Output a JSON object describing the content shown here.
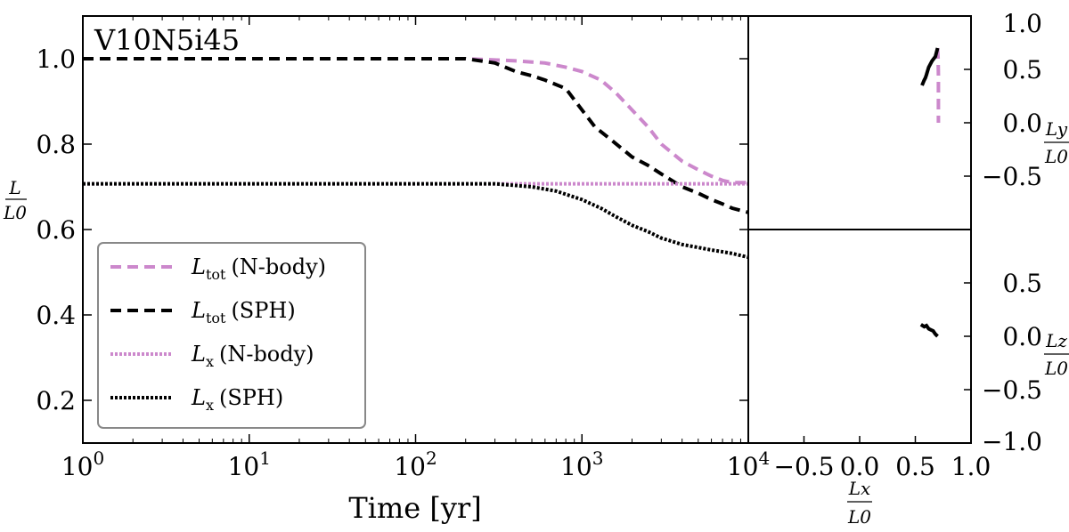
{
  "chart_data": [
    {
      "type": "line",
      "panel": "main",
      "title": "V10N5i45",
      "xscale": "log",
      "xlabel": "Time [yr]",
      "ylabel_num": "L",
      "ylabel_den": "L0",
      "xlim": [
        1,
        10000
      ],
      "ylim": [
        0.1,
        1.1
      ],
      "xticks": [
        1,
        10,
        100,
        1000,
        10000
      ],
      "xtick_labels": [
        {
          "base": "10",
          "exp": "0"
        },
        {
          "base": "10",
          "exp": "1"
        },
        {
          "base": "10",
          "exp": "2"
        },
        {
          "base": "10",
          "exp": "3"
        },
        {
          "base": "10",
          "exp": "4"
        }
      ],
      "yticks": [
        0.2,
        0.4,
        0.6,
        0.8,
        1.0
      ],
      "ytick_labels": [
        "0.2",
        "0.4",
        "0.6",
        "0.8",
        "1.0"
      ],
      "legend_position": "lower-left",
      "series": [
        {
          "name": "L_tot (N-body)",
          "legend_main": "L",
          "legend_sub": "tot",
          "legend_rest": "(N-body)",
          "color": "#cc88cc",
          "dash": "dashed",
          "x": [
            1,
            10,
            100,
            200,
            400,
            600,
            800,
            1000,
            1300,
            1600,
            2000,
            2500,
            3000,
            4000,
            5000,
            6000,
            7000,
            8000,
            10000
          ],
          "y": [
            1.0,
            1.0,
            1.0,
            1.0,
            0.995,
            0.99,
            0.98,
            0.97,
            0.95,
            0.92,
            0.88,
            0.84,
            0.8,
            0.76,
            0.74,
            0.725,
            0.715,
            0.71,
            0.71
          ]
        },
        {
          "name": "L_tot (SPH)",
          "legend_main": "L",
          "legend_sub": "tot",
          "legend_rest": "(SPH)",
          "color": "#000000",
          "dash": "dashed",
          "x": [
            1,
            10,
            100,
            200,
            300,
            400,
            500,
            600,
            800,
            1000,
            1200,
            1500,
            2000,
            2500,
            3000,
            4000,
            5000,
            6000,
            7000,
            8000,
            10000
          ],
          "y": [
            1.0,
            1.0,
            1.0,
            1.0,
            0.99,
            0.97,
            0.96,
            0.95,
            0.93,
            0.88,
            0.84,
            0.81,
            0.77,
            0.75,
            0.73,
            0.7,
            0.685,
            0.67,
            0.66,
            0.65,
            0.64
          ]
        },
        {
          "name": "L_x (N-body)",
          "legend_main": "L",
          "legend_sub": "x",
          "legend_rest": "(N-body)",
          "color": "#cc88cc",
          "dash": "dotted",
          "x": [
            1,
            10,
            100,
            1000,
            10000
          ],
          "y": [
            0.707,
            0.707,
            0.707,
            0.707,
            0.707
          ]
        },
        {
          "name": "L_x (SPH)",
          "legend_main": "L",
          "legend_sub": "x",
          "legend_rest": "(SPH)",
          "color": "#000000",
          "dash": "dotted",
          "x": [
            1,
            10,
            100,
            300,
            500,
            700,
            1000,
            1300,
            1600,
            2000,
            2500,
            3000,
            4000,
            5000,
            6000,
            7000,
            8000,
            10000
          ],
          "y": [
            0.707,
            0.707,
            0.707,
            0.707,
            0.7,
            0.69,
            0.67,
            0.65,
            0.63,
            0.61,
            0.595,
            0.58,
            0.565,
            0.558,
            0.552,
            0.548,
            0.544,
            0.535
          ]
        }
      ]
    },
    {
      "type": "line",
      "panel": "upper-right",
      "xlabel_num": "Lx",
      "xlabel_den": "L0",
      "ylabel_num": "Ly",
      "ylabel_den": "L0",
      "xlim": [
        -1.0,
        1.0
      ],
      "ylim": [
        -1.0,
        1.0
      ],
      "yticks": [
        0.5,
        0.0,
        -0.5,
        1.0
      ],
      "ytick_labels": [
        "0.5",
        "0.0",
        "−0.5",
        "1.0"
      ],
      "series": [
        {
          "name": "N-body",
          "color": "#cc88cc",
          "dash": "dashed",
          "x": [
            0.7,
            0.705,
            0.707,
            0.707,
            0.707
          ],
          "y": [
            0.7,
            0.6,
            0.45,
            0.2,
            0.0
          ]
        },
        {
          "name": "SPH",
          "color": "#000000",
          "dash": "solid",
          "x": [
            0.7,
            0.68,
            0.65,
            0.62,
            0.6,
            0.59,
            0.58,
            0.56
          ],
          "y": [
            0.7,
            0.62,
            0.58,
            0.52,
            0.45,
            0.42,
            0.4,
            0.35
          ]
        }
      ]
    },
    {
      "type": "line",
      "panel": "lower-right",
      "xlabel_num": "Lx",
      "xlabel_den": "L0",
      "ylabel_num": "Lz",
      "ylabel_den": "L0",
      "xlim": [
        -1.0,
        1.0
      ],
      "ylim": [
        -1.0,
        1.0
      ],
      "xticks": [
        -0.5,
        0.0,
        0.5,
        1.0
      ],
      "xtick_labels": [
        "−0.5",
        "0.0",
        "0.5",
        "1.0"
      ],
      "yticks": [
        0.5,
        0.0,
        -0.5,
        -1.0
      ],
      "ytick_labels": [
        "0.5",
        "0.0",
        "−0.5",
        "−1.0"
      ],
      "series": [
        {
          "name": "SPH",
          "color": "#000000",
          "dash": "solid",
          "x": [
            0.55,
            0.58,
            0.6,
            0.62,
            0.64,
            0.66,
            0.68,
            0.7
          ],
          "y": [
            0.11,
            0.09,
            0.1,
            0.07,
            0.06,
            0.05,
            0.02,
            0.0
          ]
        }
      ]
    }
  ]
}
